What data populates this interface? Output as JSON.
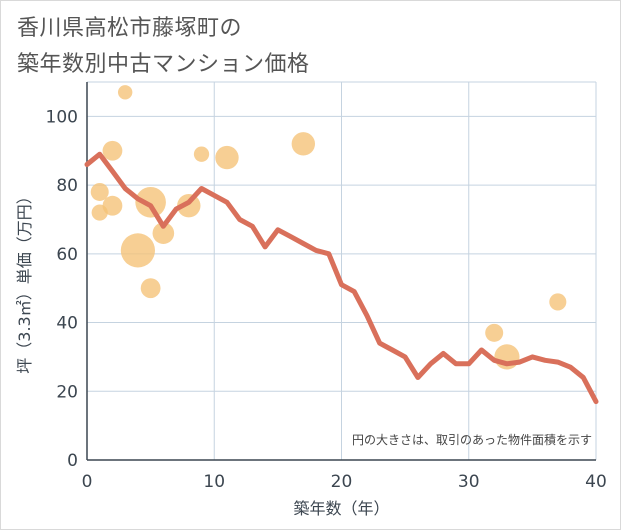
{
  "title_line1": "香川県高松市藤塚町の",
  "title_line2": "築年数別中古マンション価格",
  "chart_data": {
    "type": "scatter+line",
    "xlabel": "築年数（年）",
    "ylabel": "坪（3.3㎡）単価（万円）",
    "xlim": [
      0,
      40
    ],
    "ylim": [
      0,
      110
    ],
    "x_ticks": [
      0,
      10,
      20,
      30,
      40
    ],
    "y_ticks": [
      0,
      20,
      40,
      60,
      80,
      100
    ],
    "grid": true,
    "note": "円の大きさは、取引のあった物件面積を示す",
    "colors": {
      "bubble": "#f5c276",
      "line": "#d9705b",
      "grid": "#c5d3e0",
      "text": "#3c4650"
    },
    "scatter": [
      {
        "x": 1,
        "y": 78,
        "size": 1.0
      },
      {
        "x": 1,
        "y": 72,
        "size": 0.9
      },
      {
        "x": 2,
        "y": 90,
        "size": 1.1
      },
      {
        "x": 2,
        "y": 74,
        "size": 1.1
      },
      {
        "x": 3,
        "y": 107,
        "size": 0.8
      },
      {
        "x": 4,
        "y": 61,
        "size": 1.9
      },
      {
        "x": 5,
        "y": 75,
        "size": 1.7
      },
      {
        "x": 5,
        "y": 50,
        "size": 1.1
      },
      {
        "x": 6,
        "y": 66,
        "size": 1.2
      },
      {
        "x": 8,
        "y": 74,
        "size": 1.3
      },
      {
        "x": 9,
        "y": 89,
        "size": 0.85
      },
      {
        "x": 11,
        "y": 88,
        "size": 1.3
      },
      {
        "x": 17,
        "y": 92,
        "size": 1.3
      },
      {
        "x": 32,
        "y": 37,
        "size": 1.0
      },
      {
        "x": 33,
        "y": 30,
        "size": 1.4
      },
      {
        "x": 37,
        "y": 46,
        "size": 0.95
      }
    ],
    "line": {
      "x": [
        0,
        1,
        2,
        3,
        4,
        5,
        6,
        7,
        8,
        9,
        10,
        11,
        12,
        13,
        14,
        15,
        16,
        17,
        18,
        19,
        20,
        21,
        22,
        23,
        24,
        25,
        26,
        27,
        28,
        29,
        30,
        31,
        32,
        33,
        34,
        35,
        36,
        37,
        38,
        39,
        40
      ],
      "y": [
        86,
        89,
        84,
        79,
        76,
        74,
        68,
        73,
        75,
        79,
        77,
        75,
        70,
        68,
        62,
        67,
        65,
        63,
        61,
        60,
        51,
        49,
        42,
        34,
        32,
        30,
        24,
        28,
        31,
        28,
        28,
        32,
        29,
        28,
        28.5,
        30,
        29,
        28.5,
        27,
        24,
        17
      ]
    }
  }
}
